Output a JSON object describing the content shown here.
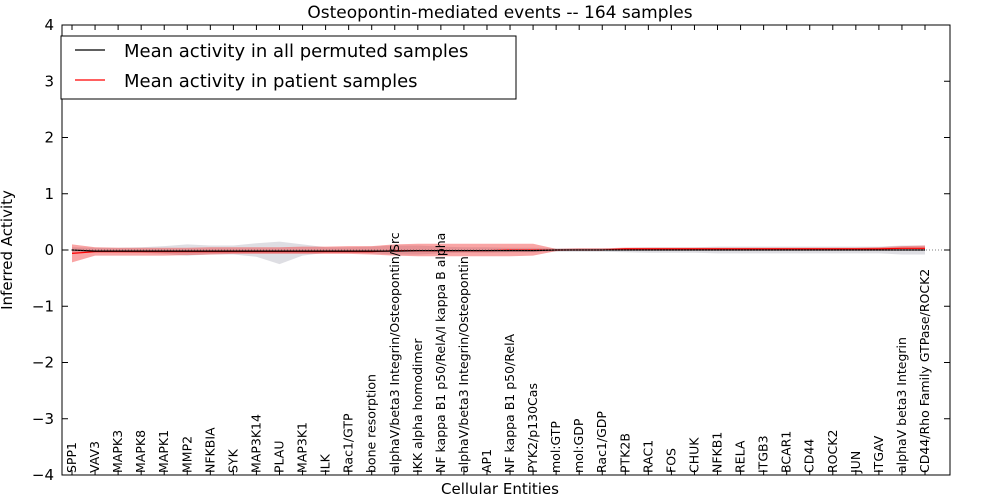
{
  "chart_data": {
    "type": "line",
    "title": "Osteopontin-mediated events -- 164 samples",
    "xlabel": "Cellular Entities",
    "ylabel": "Inferred Activity",
    "ylim": [
      -4,
      4
    ],
    "yticks": [
      4,
      3,
      2,
      1,
      0,
      -1,
      -2,
      -3,
      -4
    ],
    "ytick_labels": [
      "4",
      "3",
      "2",
      "1",
      "0",
      "−1",
      "−2",
      "−3",
      "−4"
    ],
    "legend_position": "top-left",
    "categories": [
      "SPP1",
      "VAV3",
      "MAPK3",
      "MAPK8",
      "MAPK1",
      "MMP2",
      "NFKBIA",
      "SYK",
      "MAP3K14",
      "PLAU",
      "MAP3K1",
      "ILK",
      "Rac1/GTP",
      "bone resorption",
      "alphaV/beta3 Integrin/Osteopontin/Src",
      "IKK alpha homodimer",
      "NF kappa B1 p50/RelA/I kappa B alpha",
      "alphaV/beta3 Integrin/Osteopontin",
      "AP1",
      "NF kappa B1 p50/RelA",
      "PYK2/p130Cas",
      "mol:GTP",
      "mol:GDP",
      "Rac1/GDP",
      "PTK2B",
      "RAC1",
      "FOS",
      "CHUK",
      "NFKB1",
      "RELA",
      "ITGB3",
      "BCAR1",
      "CD44",
      "ROCK2",
      "JUN",
      "ITGAV",
      "alphaV beta3 Integrin",
      "CD44/Rho Family GTPase/ROCK2"
    ],
    "series": [
      {
        "name": "Mean activity in all permuted samples",
        "color": "#000000",
        "values": [
          0.0,
          -0.02,
          -0.02,
          -0.02,
          -0.02,
          -0.02,
          -0.02,
          -0.02,
          -0.02,
          -0.02,
          -0.02,
          -0.02,
          -0.02,
          -0.02,
          -0.02,
          -0.01,
          -0.01,
          -0.01,
          -0.01,
          -0.01,
          -0.01,
          0.0,
          0.0,
          0.0,
          0.0,
          0.0,
          0.0,
          0.0,
          0.0,
          0.0,
          0.0,
          0.0,
          0.0,
          0.0,
          0.0,
          0.0,
          0.0,
          0.0
        ],
        "band_low": [
          -0.05,
          -0.04,
          -0.04,
          -0.05,
          -0.07,
          -0.1,
          -0.08,
          -0.08,
          -0.12,
          -0.25,
          -0.1,
          -0.05,
          -0.05,
          -0.06,
          -0.08,
          -0.08,
          -0.06,
          -0.05,
          -0.05,
          -0.04,
          -0.04,
          -0.03,
          -0.03,
          -0.03,
          -0.04,
          -0.05,
          -0.05,
          -0.05,
          -0.06,
          -0.06,
          -0.06,
          -0.06,
          -0.06,
          -0.06,
          -0.06,
          -0.06,
          -0.08,
          -0.08
        ],
        "band_high": [
          0.05,
          0.04,
          0.04,
          0.05,
          0.07,
          0.1,
          0.08,
          0.08,
          0.12,
          0.15,
          0.1,
          0.05,
          0.05,
          0.06,
          0.08,
          0.08,
          0.06,
          0.05,
          0.05,
          0.04,
          0.04,
          0.03,
          0.03,
          0.03,
          0.04,
          0.05,
          0.05,
          0.05,
          0.06,
          0.06,
          0.06,
          0.06,
          0.06,
          0.06,
          0.06,
          0.06,
          0.08,
          0.08
        ]
      },
      {
        "name": "Mean activity in patient samples",
        "color": "#ff0000",
        "values": [
          -0.06,
          -0.03,
          -0.03,
          -0.03,
          -0.03,
          -0.03,
          -0.03,
          -0.03,
          -0.03,
          -0.03,
          -0.03,
          -0.03,
          -0.03,
          -0.03,
          -0.01,
          -0.01,
          -0.01,
          -0.01,
          -0.01,
          0.0,
          0.0,
          0.0,
          0.0,
          0.0,
          0.02,
          0.02,
          0.02,
          0.02,
          0.02,
          0.02,
          0.02,
          0.02,
          0.02,
          0.02,
          0.02,
          0.02,
          0.03,
          0.03
        ],
        "band_low": [
          -0.22,
          -0.1,
          -0.1,
          -0.1,
          -0.1,
          -0.09,
          -0.08,
          -0.07,
          -0.07,
          -0.07,
          -0.07,
          -0.07,
          -0.07,
          -0.08,
          -0.1,
          -0.11,
          -0.11,
          -0.11,
          -0.11,
          -0.11,
          -0.1,
          -0.02,
          0.0,
          0.0,
          0.0,
          0.0,
          0.0,
          0.0,
          0.0,
          0.0,
          0.0,
          0.0,
          0.0,
          0.0,
          0.0,
          0.0,
          0.0,
          0.0
        ],
        "band_high": [
          0.1,
          0.05,
          0.04,
          0.04,
          0.04,
          0.04,
          0.05,
          0.05,
          0.05,
          0.05,
          0.06,
          0.06,
          0.07,
          0.07,
          0.1,
          0.11,
          0.11,
          0.11,
          0.11,
          0.11,
          0.11,
          0.02,
          0.03,
          0.03,
          0.04,
          0.04,
          0.04,
          0.04,
          0.04,
          0.04,
          0.04,
          0.04,
          0.04,
          0.04,
          0.04,
          0.05,
          0.07,
          0.08
        ]
      }
    ]
  }
}
